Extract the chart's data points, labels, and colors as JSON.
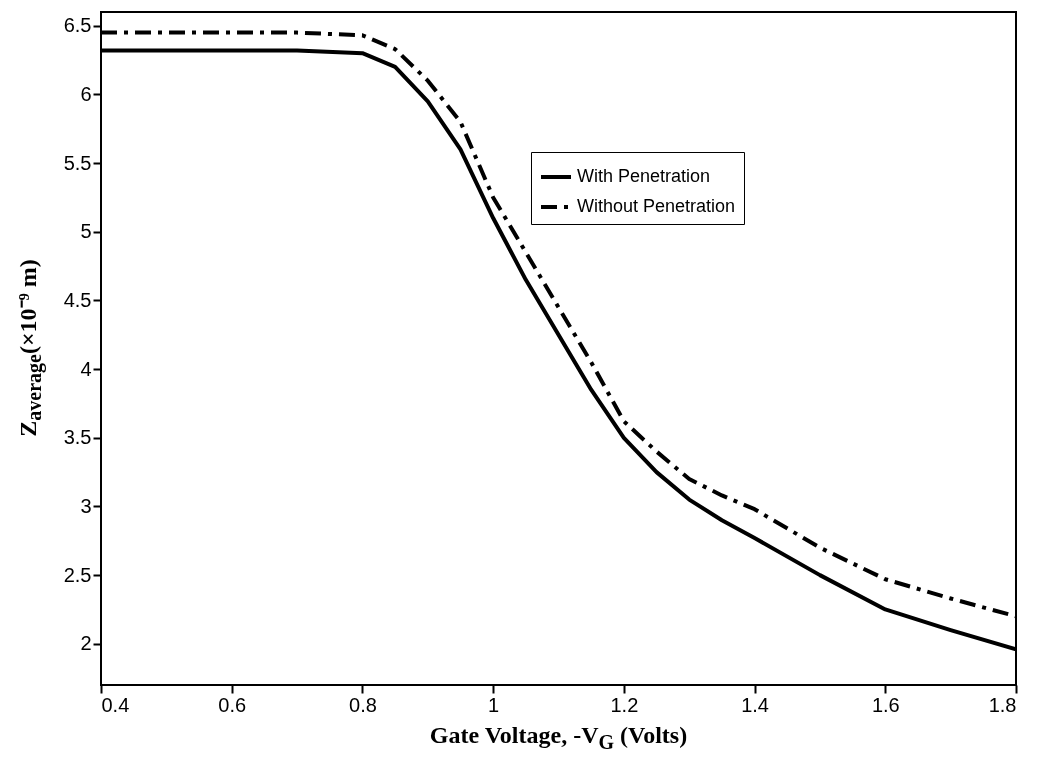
{
  "chart_data": {
    "type": "line",
    "xlabel": "Gate Voltage, -V$_{G}$ (Volts)",
    "ylabel": "Z$_{average}$(×10⁻⁹ m)",
    "xlim": [
      0.4,
      1.8
    ],
    "ylim": [
      1.7,
      6.6
    ],
    "xticks": [
      0.4,
      0.6,
      0.8,
      1,
      1.2,
      1.4,
      1.6,
      1.8
    ],
    "yticks": [
      2,
      2.5,
      3,
      3.5,
      4,
      4.5,
      5,
      5.5,
      6,
      6.5
    ],
    "x": [
      0.4,
      0.5,
      0.6,
      0.7,
      0.8,
      0.85,
      0.9,
      0.95,
      1,
      1.05,
      1.1,
      1.15,
      1.2,
      1.25,
      1.3,
      1.35,
      1.4,
      1.5,
      1.6,
      1.7,
      1.8
    ],
    "series": [
      {
        "name": "With Penetration",
        "color": "#000000",
        "line_style": "solid",
        "values": [
          6.32,
          6.32,
          6.32,
          6.32,
          6.3,
          6.2,
          5.95,
          5.6,
          5.1,
          4.65,
          4.25,
          3.85,
          3.5,
          3.25,
          3.05,
          2.9,
          2.77,
          2.5,
          2.25,
          2.1,
          1.96
        ]
      },
      {
        "name": "Without Penetration",
        "color": "#000000",
        "line_style": "dashdot",
        "values": [
          6.45,
          6.45,
          6.45,
          6.45,
          6.43,
          6.33,
          6.1,
          5.8,
          5.25,
          4.85,
          4.45,
          4.05,
          3.62,
          3.4,
          3.2,
          3.08,
          2.98,
          2.7,
          2.47,
          2.33,
          2.2
        ]
      }
    ],
    "legend": "top right",
    "grid": false
  }
}
